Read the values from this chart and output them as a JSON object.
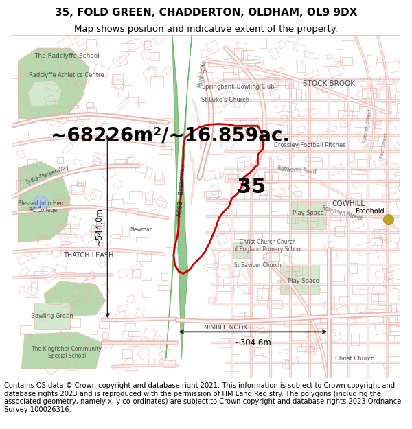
{
  "title_line1": "35, FOLD GREEN, CHADDERTON, OLDHAM, OL9 9DX",
  "title_line2": "Map shows position and indicative extent of the property.",
  "area_text": "~68226m²/~16.859ac.",
  "width_label": "~304.6m",
  "height_label": "~544.0m",
  "parcel_number": "35",
  "freehold_label": "Freehold",
  "footer_text": "Contains OS data © Crown copyright and database right 2021. This information is subject to Crown copyright and database rights 2023 and is reproduced with the permission of HM Land Registry. The polygons (including the associated geometry, namely x, y co-ordinates) are subject to Crown copyright and database rights 2023 Ordnance Survey 100026316.",
  "map_bg_color": "#f9f3f1",
  "road_outline_color": "#e8b0a8",
  "road_fill_color": "#ffffff",
  "building_color": "#e8b0a8",
  "highlight_color": "#cc0000",
  "green_color": "#d4e8d0",
  "green_dark_color": "#b8d8b0",
  "canal_color": "#90c890",
  "canal_dark": "#70b870",
  "grey_road_color": "#888888",
  "arrow_color": "#222222",
  "text_color": "#444444",
  "title_fontsize": 11,
  "subtitle_fontsize": 9.5,
  "area_fontsize": 20,
  "parcel_fontsize": 22,
  "footer_fontsize": 7.2,
  "freehold_dot_color": "#c8a020"
}
